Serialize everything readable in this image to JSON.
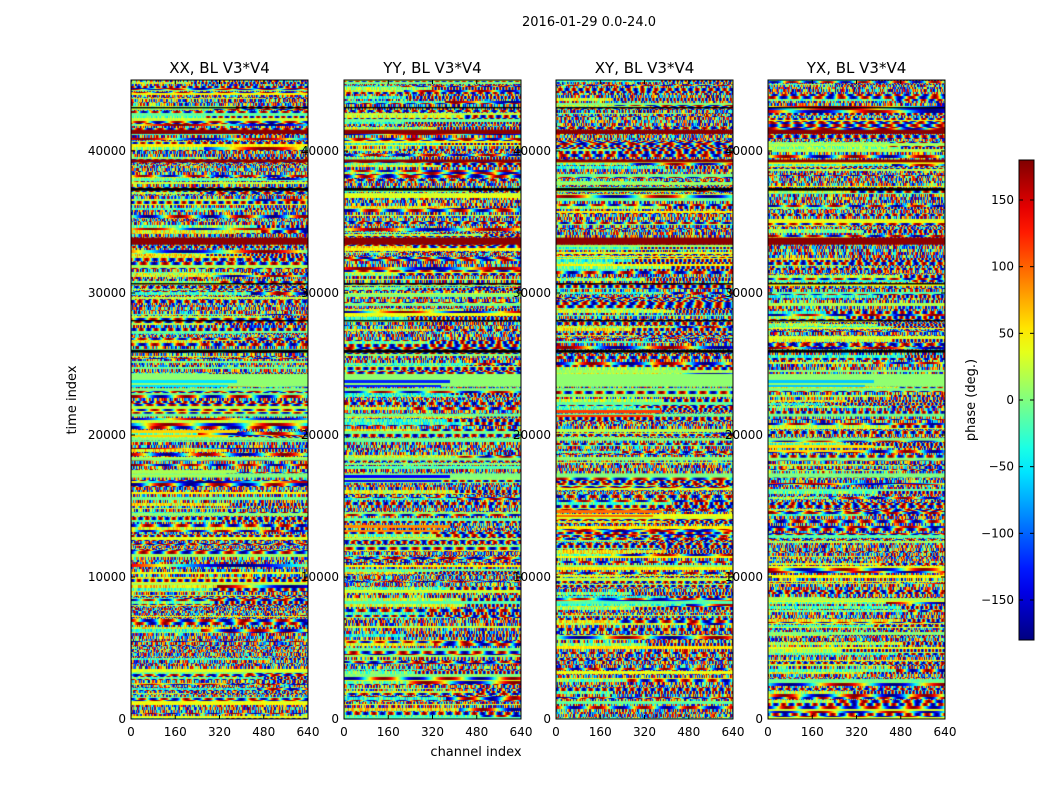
{
  "figure": {
    "suptitle": "2016-01-29 0.0-24.0"
  },
  "chart_data": {
    "type": "heatmap",
    "panels": [
      {
        "title": "XX, BL V3*V4",
        "seed": 11,
        "extra_bands": [
          [
            300,
            340,
            "#00e5ff"
          ],
          [
            350,
            395,
            "#ffd400"
          ],
          [
            390,
            460,
            "#a8ff50"
          ]
        ]
      },
      {
        "title": "YY, BL V3*V4",
        "seed": 23,
        "extra_bands": [
          [
            300,
            360,
            "#0020ff"
          ],
          [
            395,
            410,
            "#0000ff"
          ],
          [
            445,
            480,
            "#ff8c00"
          ]
        ]
      },
      {
        "title": "XY, BL V3*V4",
        "seed": 37,
        "extra_bands": [
          [
            330,
            380,
            "#ff3b00"
          ],
          [
            430,
            450,
            "#ff6a00"
          ]
        ]
      },
      {
        "title": "YX, BL V3*V4",
        "seed": 53,
        "extra_bands": [
          [
            300,
            330,
            "#00c8ff"
          ],
          [
            365,
            380,
            "#ffe000"
          ]
        ]
      }
    ],
    "x_axis": {
      "label": "channel index",
      "ticks": [
        0,
        160,
        320,
        480,
        640
      ],
      "xlim": [
        0,
        640
      ]
    },
    "y_axis": {
      "label": "time index",
      "ticks": [
        0,
        10000,
        20000,
        30000,
        40000
      ],
      "ylim": [
        0,
        45000
      ]
    },
    "colorbar": {
      "label": "phase (deg.)",
      "ticks": [
        -150,
        -100,
        -50,
        0,
        50,
        100,
        150
      ],
      "range": [
        -180,
        180
      ],
      "colormap": "jet",
      "colors": [
        "#00007f",
        "#0000ff",
        "#007fff",
        "#00ffff",
        "#7fff7f",
        "#ffff00",
        "#ff7f00",
        "#ff0000",
        "#7f0000"
      ]
    },
    "uniform_time_bands": [
      [
        23100,
        23300,
        "#7fff7f"
      ],
      [
        23400,
        24300,
        "#90ff70"
      ],
      [
        17000,
        17300,
        "#80ff80"
      ],
      [
        18200,
        18400,
        "#88ff78"
      ],
      [
        19600,
        19800,
        "#7fff7f"
      ],
      [
        21300,
        21500,
        "#70ff90"
      ],
      [
        25800,
        26000,
        "#000000"
      ],
      [
        28000,
        28100,
        "#000000"
      ],
      [
        30600,
        30700,
        "#000000"
      ],
      [
        33400,
        33900,
        "#8b0000"
      ],
      [
        37200,
        37400,
        "#000000"
      ],
      [
        39200,
        39400,
        "#8b0000"
      ],
      [
        41200,
        41500,
        "#8b0000"
      ],
      [
        43000,
        43100,
        "#000000"
      ]
    ]
  }
}
